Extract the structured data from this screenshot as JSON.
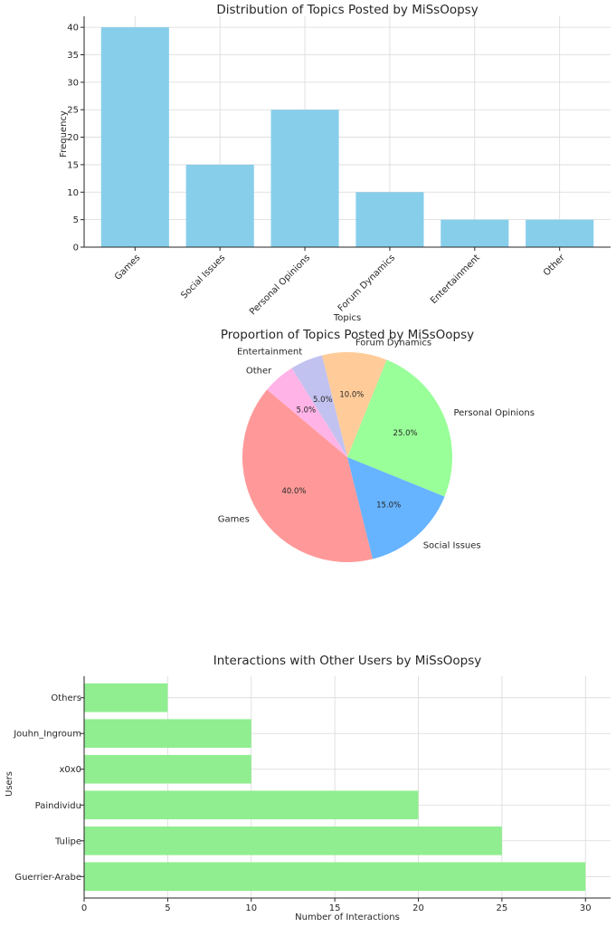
{
  "chart_data": [
    {
      "type": "bar",
      "title": "Distribution of Topics Posted by MiSsOopsy",
      "xlabel": "Topics",
      "ylabel": "Frequency",
      "categories": [
        "Games",
        "Social Issues",
        "Personal Opinions",
        "Forum Dynamics",
        "Entertainment",
        "Other"
      ],
      "values": [
        40,
        15,
        25,
        10,
        5,
        5
      ],
      "ylim": [
        0,
        42
      ],
      "yticks": [
        0,
        5,
        10,
        15,
        20,
        25,
        30,
        35,
        40
      ],
      "color": "#87ceeb",
      "grid": true
    },
    {
      "type": "pie",
      "title": "Proportion of Topics Posted by MiSsOopsy",
      "labels": [
        "Games",
        "Social Issues",
        "Personal Opinions",
        "Forum Dynamics",
        "Entertainment",
        "Other"
      ],
      "values": [
        40,
        15,
        25,
        10,
        5,
        5
      ],
      "percent_labels": [
        "40.0%",
        "15.0%",
        "25.0%",
        "10.0%",
        "5.0%",
        "5.0%"
      ],
      "colors": [
        "#ff9999",
        "#66b3ff",
        "#99ff99",
        "#ffcc99",
        "#c2c2f0",
        "#ffb3e6"
      ],
      "start_angle_deg": 140
    },
    {
      "type": "bar",
      "orientation": "horizontal",
      "title": "Interactions with Other Users by MiSsOopsy",
      "xlabel": "Number of Interactions",
      "ylabel": "Users",
      "categories": [
        "Guerrier-Arabe",
        "Tulipe",
        "Paindividu",
        "x0x0",
        "Jouhn_Ingroum",
        "Others"
      ],
      "values": [
        30,
        25,
        20,
        10,
        10,
        5
      ],
      "xlim": [
        0,
        31.5
      ],
      "xticks": [
        0,
        5,
        10,
        15,
        20,
        25,
        30
      ],
      "color": "#90ee90",
      "grid": true
    }
  ]
}
